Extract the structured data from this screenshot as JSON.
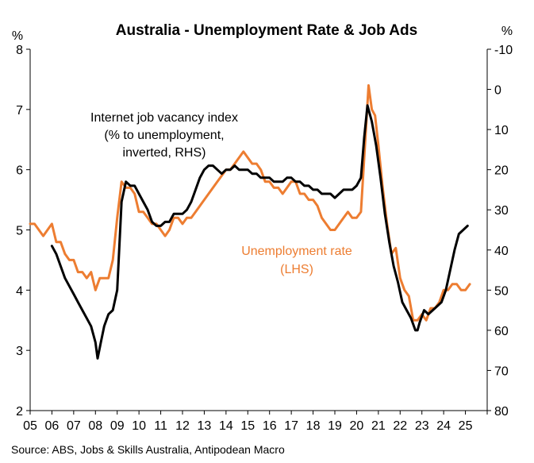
{
  "chart_data": {
    "type": "line",
    "title": "Australia - Unemployment Rate & Job Ads",
    "source": "Source: ABS, Jobs & Skills Australia, Antipodean Macro",
    "left_axis": {
      "unit": "%",
      "ylim": [
        2,
        8
      ],
      "ticks": [
        2,
        3,
        4,
        5,
        6,
        7,
        8
      ],
      "tick_labels": [
        "2",
        "3",
        "4",
        "5",
        "6",
        "7",
        "8"
      ]
    },
    "right_axis": {
      "unit": "%",
      "inverted": true,
      "ylim": [
        -10,
        80
      ],
      "ticks": [
        -10,
        0,
        10,
        20,
        30,
        40,
        50,
        60,
        70,
        80
      ],
      "tick_labels": [
        "-10",
        "0",
        "10",
        "20",
        "30",
        "40",
        "50",
        "60",
        "70",
        "80"
      ]
    },
    "x_axis": {
      "xlim": [
        2005,
        2026
      ],
      "ticks": [
        2005,
        2006,
        2007,
        2008,
        2009,
        2010,
        2011,
        2012,
        2013,
        2014,
        2015,
        2016,
        2017,
        2018,
        2019,
        2020,
        2021,
        2022,
        2023,
        2024,
        2025
      ],
      "tick_labels": [
        "05",
        "06",
        "07",
        "08",
        "09",
        "10",
        "11",
        "12",
        "13",
        "14",
        "15",
        "16",
        "17",
        "18",
        "19",
        "20",
        "21",
        "22",
        "23",
        "24",
        "25"
      ]
    },
    "grid": false,
    "series": [
      {
        "name": "Unemployment rate (LHS)",
        "label_lines": [
          "Unemployment rate",
          "(LHS)"
        ],
        "axis": "left",
        "color": "#ED7D31",
        "x": [
          2005.0,
          2005.2,
          2005.4,
          2005.6,
          2005.8,
          2006.0,
          2006.2,
          2006.4,
          2006.6,
          2006.8,
          2007.0,
          2007.2,
          2007.4,
          2007.6,
          2007.8,
          2008.0,
          2008.2,
          2008.4,
          2008.6,
          2008.8,
          2009.0,
          2009.2,
          2009.4,
          2009.6,
          2009.8,
          2010.0,
          2010.2,
          2010.4,
          2010.6,
          2010.8,
          2011.0,
          2011.2,
          2011.4,
          2011.6,
          2011.8,
          2012.0,
          2012.2,
          2012.4,
          2012.6,
          2012.8,
          2013.0,
          2013.2,
          2013.4,
          2013.6,
          2013.8,
          2014.0,
          2014.2,
          2014.4,
          2014.6,
          2014.8,
          2015.0,
          2015.2,
          2015.4,
          2015.6,
          2015.8,
          2016.0,
          2016.2,
          2016.4,
          2016.6,
          2016.8,
          2017.0,
          2017.2,
          2017.4,
          2017.6,
          2017.8,
          2018.0,
          2018.2,
          2018.4,
          2018.6,
          2018.8,
          2019.0,
          2019.2,
          2019.4,
          2019.6,
          2019.8,
          2020.0,
          2020.2,
          2020.4,
          2020.55,
          2020.7,
          2020.85,
          2021.0,
          2021.2,
          2021.4,
          2021.6,
          2021.8,
          2022.0,
          2022.2,
          2022.4,
          2022.6,
          2022.8,
          2023.0,
          2023.2,
          2023.4,
          2023.6,
          2023.8,
          2024.0,
          2024.2,
          2024.4,
          2024.6,
          2024.8,
          2025.0,
          2025.2
        ],
        "values": [
          5.1,
          5.1,
          5.0,
          4.9,
          5.0,
          5.1,
          4.8,
          4.8,
          4.6,
          4.5,
          4.5,
          4.3,
          4.3,
          4.2,
          4.3,
          4.0,
          4.2,
          4.2,
          4.2,
          4.5,
          5.2,
          5.8,
          5.7,
          5.7,
          5.6,
          5.3,
          5.3,
          5.2,
          5.1,
          5.1,
          5.0,
          4.9,
          5.0,
          5.2,
          5.2,
          5.1,
          5.2,
          5.2,
          5.3,
          5.4,
          5.5,
          5.6,
          5.7,
          5.8,
          5.9,
          6.0,
          6.0,
          6.1,
          6.2,
          6.3,
          6.2,
          6.1,
          6.1,
          6.0,
          5.8,
          5.8,
          5.7,
          5.7,
          5.6,
          5.7,
          5.8,
          5.8,
          5.6,
          5.6,
          5.5,
          5.5,
          5.4,
          5.2,
          5.1,
          5.0,
          5.0,
          5.1,
          5.2,
          5.3,
          5.2,
          5.2,
          5.3,
          6.5,
          7.4,
          7.0,
          6.9,
          6.4,
          5.7,
          5.1,
          4.6,
          4.7,
          4.2,
          4.0,
          3.9,
          3.5,
          3.5,
          3.6,
          3.5,
          3.7,
          3.7,
          3.8,
          4.0,
          4.0,
          4.1,
          4.1,
          4.0,
          4.0,
          4.1
        ]
      },
      {
        "name": "Internet job vacancy index",
        "label_lines": [
          "Internet job vacancy index",
          "(% to unemployment,",
          "inverted, RHS)"
        ],
        "axis": "right",
        "color": "#000000",
        "x": [
          2006.0,
          2006.2,
          2006.4,
          2006.6,
          2006.8,
          2007.0,
          2007.2,
          2007.4,
          2007.6,
          2007.8,
          2008.0,
          2008.1,
          2008.25,
          2008.4,
          2008.6,
          2008.8,
          2009.0,
          2009.2,
          2009.4,
          2009.6,
          2009.8,
          2010.0,
          2010.2,
          2010.4,
          2010.6,
          2010.8,
          2011.0,
          2011.2,
          2011.4,
          2011.6,
          2011.8,
          2012.0,
          2012.2,
          2012.4,
          2012.6,
          2012.8,
          2013.0,
          2013.2,
          2013.4,
          2013.6,
          2013.8,
          2014.0,
          2014.2,
          2014.4,
          2014.6,
          2014.8,
          2015.0,
          2015.2,
          2015.4,
          2015.6,
          2015.8,
          2016.0,
          2016.2,
          2016.4,
          2016.6,
          2016.8,
          2017.0,
          2017.2,
          2017.4,
          2017.6,
          2017.8,
          2018.0,
          2018.2,
          2018.4,
          2018.6,
          2018.8,
          2019.0,
          2019.2,
          2019.4,
          2019.6,
          2019.8,
          2020.0,
          2020.2,
          2020.35,
          2020.5,
          2020.7,
          2020.9,
          2021.1,
          2021.3,
          2021.5,
          2021.7,
          2021.9,
          2022.1,
          2022.3,
          2022.5,
          2022.7,
          2022.8,
          2022.9,
          2023.1,
          2023.3,
          2023.5,
          2023.7,
          2023.9,
          2024.1,
          2024.3,
          2024.5,
          2024.7,
          2024.9,
          2025.1
        ],
        "values": [
          39,
          41,
          44,
          47,
          49,
          51,
          53,
          55,
          57,
          59,
          63,
          67,
          63,
          59,
          56,
          55,
          50,
          28,
          23,
          24,
          24,
          26,
          28,
          30,
          33,
          34,
          34,
          33,
          33,
          31,
          31,
          31,
          30,
          28,
          25,
          22,
          20,
          19,
          19,
          20,
          21,
          20,
          20,
          19,
          20,
          20,
          20,
          21,
          21,
          22,
          22,
          22,
          23,
          23,
          23,
          22,
          22,
          23,
          23,
          24,
          24,
          25,
          25,
          26,
          26,
          26,
          27,
          26,
          25,
          25,
          25,
          24,
          22,
          12,
          4,
          8,
          14,
          22,
          31,
          38,
          44,
          48,
          53,
          55,
          57,
          60,
          60,
          58,
          55,
          56,
          55,
          54,
          53,
          50,
          45,
          40,
          36,
          35,
          34
        ]
      }
    ]
  }
}
